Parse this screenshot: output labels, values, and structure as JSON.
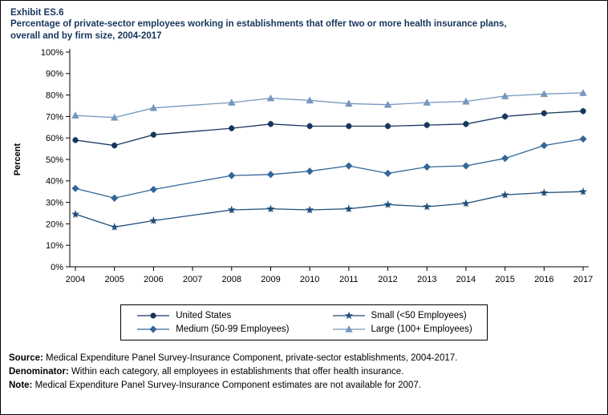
{
  "header": {
    "exhibit": "Exhibit ES.6",
    "title_line1": "Percentage of private-sector employees working in establishments that offer two or more health insurance plans,",
    "title_line2": "overall and by firm size, 2004-2017"
  },
  "chart_data": {
    "type": "line",
    "title": "Percentage of private-sector employees working in establishments that offer two or more health insurance plans, overall and by firm size, 2004-2017",
    "xlabel": "",
    "ylabel": "Percent",
    "ylim": [
      0,
      100
    ],
    "ytick_step": 10,
    "ytick_format": "percent",
    "grid": false,
    "legend_position": "bottom",
    "x": [
      2004,
      2005,
      2006,
      2007,
      2008,
      2009,
      2010,
      2011,
      2012,
      2013,
      2014,
      2015,
      2016,
      2017
    ],
    "note": "Estimates not available for 2007; lines are drawn continuously across the 2007 gap; small vertical error bars shown at each point",
    "series": [
      {
        "name": "United States",
        "marker": "circle",
        "color": "#17365d",
        "values": [
          59,
          56.5,
          61.5,
          null,
          64.5,
          66.5,
          65.5,
          65.5,
          65.5,
          66,
          66.5,
          70,
          71.5,
          72.5
        ]
      },
      {
        "name": "Small (<50 Employees)",
        "marker": "star",
        "color": "#1f4e79",
        "values": [
          24.5,
          18.5,
          21.5,
          null,
          26.5,
          27,
          26.5,
          27,
          29,
          28,
          29.5,
          33.5,
          34.5,
          35
        ]
      },
      {
        "name": "Medium (50-99 Employees)",
        "marker": "diamond",
        "color": "#336699",
        "values": [
          36.5,
          32,
          36,
          null,
          42.5,
          43,
          44.5,
          47,
          43.5,
          46.5,
          47,
          50.5,
          56.5,
          59.5
        ]
      },
      {
        "name": "Large (100+ Employees)",
        "marker": "triangle",
        "color": "#7598bd",
        "values": [
          70.5,
          69.5,
          74,
          null,
          76.5,
          78.5,
          77.5,
          76,
          75.5,
          76.5,
          77,
          79.5,
          80.5,
          81
        ]
      }
    ]
  },
  "footnotes": [
    {
      "label": "Source:",
      "text": " Medical Expenditure Panel Survey-Insurance Component, private-sector establishments, 2004-2017."
    },
    {
      "label": "Denominator:",
      "text": " Within each category, all employees in establishments that offer health insurance."
    },
    {
      "label": "Note:",
      "text": " Medical Expenditure Panel Survey-Insurance Component estimates are not available for 2007."
    }
  ]
}
